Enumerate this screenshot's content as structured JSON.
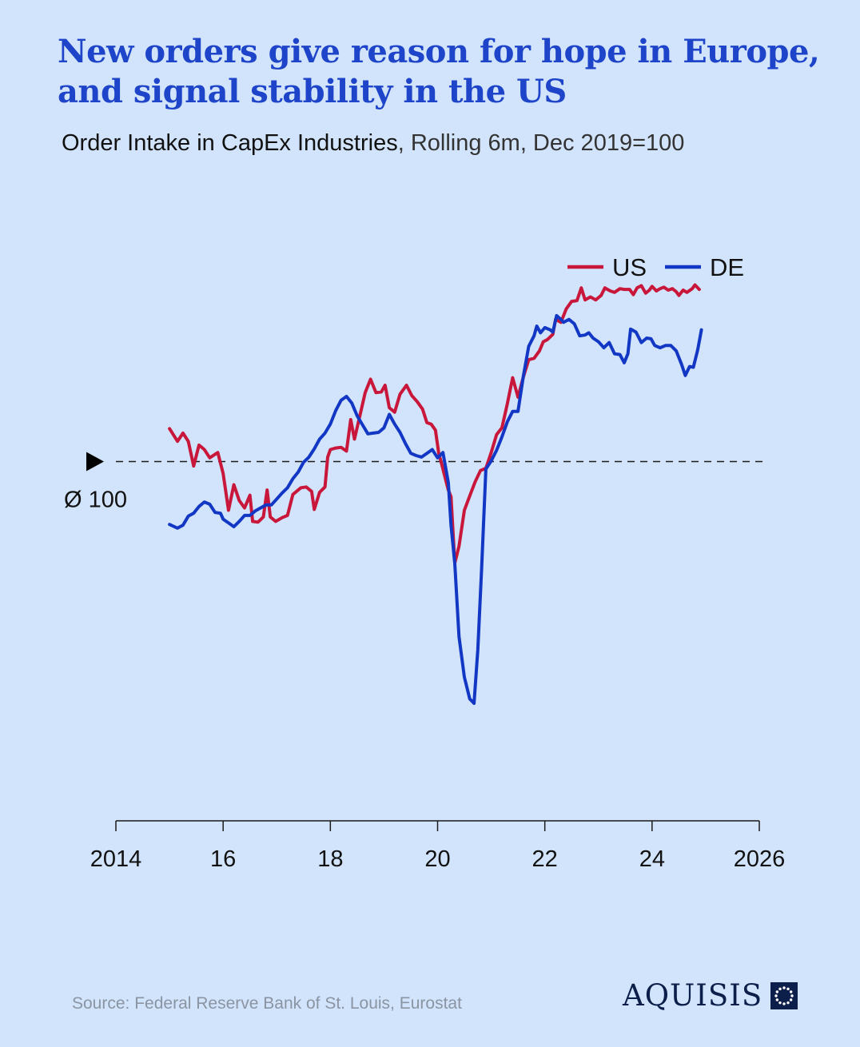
{
  "title_line1": "New orders give reason for hope in Europe,",
  "title_line2": "and signal stability in the US",
  "subtitle_main": "Order Intake in CapEx Industries",
  "subtitle_rest": ", Rolling 6m, Dec 2019=100",
  "source": "Source: Federal Reserve Bank of St. Louis, Eurostat",
  "brand": "AQUISIS",
  "colors": {
    "background": "#d2e4fb",
    "us": "#c8173a",
    "de": "#1237c4",
    "title": "#1e44c9"
  },
  "chart_data": {
    "type": "line",
    "x_ticks": [
      2014,
      2016,
      2018,
      2020,
      2022,
      2024,
      2026
    ],
    "x_tick_labels": [
      "2014",
      "16",
      "18",
      "20",
      "22",
      "24",
      "2026"
    ],
    "xlim": [
      2014,
      2026
    ],
    "ylim": [
      52,
      126
    ],
    "reference_value": 100,
    "reference_label": "Ø 100",
    "grid": false,
    "legend_position": "top-right",
    "series": [
      {
        "name": "US",
        "color": "#c8173a",
        "points": [
          [
            2015.0,
            104.4
          ],
          [
            2015.15,
            102.7
          ],
          [
            2015.25,
            103.8
          ],
          [
            2015.35,
            102.7
          ],
          [
            2015.45,
            99.4
          ],
          [
            2015.55,
            102.2
          ],
          [
            2015.65,
            101.6
          ],
          [
            2015.75,
            100.5
          ],
          [
            2015.9,
            101.2
          ],
          [
            2016.0,
            98.4
          ],
          [
            2016.1,
            93.5
          ],
          [
            2016.2,
            96.9
          ],
          [
            2016.3,
            94.8
          ],
          [
            2016.4,
            93.8
          ],
          [
            2016.5,
            95.5
          ],
          [
            2016.55,
            92.0
          ],
          [
            2016.65,
            91.9
          ],
          [
            2016.75,
            92.6
          ],
          [
            2016.82,
            96.2
          ],
          [
            2016.88,
            92.6
          ],
          [
            2016.98,
            92.0
          ],
          [
            2017.1,
            92.5
          ],
          [
            2017.2,
            92.8
          ],
          [
            2017.3,
            95.6
          ],
          [
            2017.45,
            96.5
          ],
          [
            2017.55,
            96.6
          ],
          [
            2017.65,
            96.0
          ],
          [
            2017.7,
            93.6
          ],
          [
            2017.8,
            95.9
          ],
          [
            2017.9,
            96.6
          ],
          [
            2017.95,
            100.6
          ],
          [
            2018.0,
            101.6
          ],
          [
            2018.1,
            101.8
          ],
          [
            2018.2,
            101.9
          ],
          [
            2018.3,
            101.4
          ],
          [
            2018.38,
            105.6
          ],
          [
            2018.45,
            103.0
          ],
          [
            2018.55,
            106.1
          ],
          [
            2018.65,
            109.2
          ],
          [
            2018.75,
            111.0
          ],
          [
            2018.85,
            109.2
          ],
          [
            2018.95,
            109.3
          ],
          [
            2019.02,
            110.2
          ],
          [
            2019.1,
            107.2
          ],
          [
            2019.2,
            106.6
          ],
          [
            2019.3,
            109.0
          ],
          [
            2019.42,
            110.2
          ],
          [
            2019.52,
            108.8
          ],
          [
            2019.62,
            108.0
          ],
          [
            2019.72,
            107.0
          ],
          [
            2019.8,
            105.2
          ],
          [
            2019.88,
            105.0
          ],
          [
            2019.96,
            104.2
          ],
          [
            2020.02,
            101.2
          ],
          [
            2020.1,
            99.0
          ],
          [
            2020.2,
            96.2
          ],
          [
            2020.25,
            95.3
          ],
          [
            2020.32,
            86.4
          ],
          [
            2020.4,
            88.7
          ],
          [
            2020.5,
            93.5
          ],
          [
            2020.6,
            95.4
          ],
          [
            2020.7,
            97.3
          ],
          [
            2020.8,
            98.8
          ],
          [
            2020.9,
            99.1
          ],
          [
            2021.0,
            101.2
          ],
          [
            2021.1,
            103.6
          ],
          [
            2021.2,
            104.5
          ],
          [
            2021.3,
            107.7
          ],
          [
            2021.4,
            111.2
          ],
          [
            2021.5,
            108.6
          ],
          [
            2021.6,
            111.3
          ],
          [
            2021.7,
            113.6
          ],
          [
            2021.8,
            113.8
          ],
          [
            2021.9,
            114.8
          ],
          [
            2021.97,
            116.0
          ],
          [
            2022.05,
            116.3
          ],
          [
            2022.15,
            117.0
          ],
          [
            2022.2,
            119.0
          ],
          [
            2022.3,
            118.6
          ],
          [
            2022.4,
            120.4
          ],
          [
            2022.5,
            121.4
          ],
          [
            2022.6,
            121.5
          ],
          [
            2022.68,
            123.2
          ],
          [
            2022.75,
            121.6
          ],
          [
            2022.85,
            122.0
          ],
          [
            2022.95,
            121.6
          ],
          [
            2023.05,
            122.2
          ],
          [
            2023.12,
            123.2
          ],
          [
            2023.22,
            122.8
          ],
          [
            2023.3,
            122.6
          ],
          [
            2023.4,
            123.1
          ],
          [
            2023.48,
            123.0
          ],
          [
            2023.58,
            123.0
          ],
          [
            2023.65,
            122.3
          ],
          [
            2023.72,
            123.2
          ],
          [
            2023.8,
            123.5
          ],
          [
            2023.88,
            122.5
          ],
          [
            2023.95,
            122.9
          ],
          [
            2024.0,
            123.4
          ],
          [
            2024.08,
            122.8
          ],
          [
            2024.15,
            123.1
          ],
          [
            2024.22,
            123.3
          ],
          [
            2024.3,
            122.9
          ],
          [
            2024.38,
            123.1
          ],
          [
            2024.45,
            122.7
          ],
          [
            2024.5,
            122.2
          ],
          [
            2024.58,
            122.9
          ],
          [
            2024.65,
            122.6
          ],
          [
            2024.75,
            123.1
          ],
          [
            2024.8,
            123.6
          ],
          [
            2024.88,
            123.0
          ]
        ]
      },
      {
        "name": "DE",
        "color": "#1237c4",
        "points": [
          [
            2015.0,
            91.6
          ],
          [
            2015.15,
            91.1
          ],
          [
            2015.25,
            91.5
          ],
          [
            2015.35,
            92.7
          ],
          [
            2015.45,
            93.1
          ],
          [
            2015.55,
            94.0
          ],
          [
            2015.65,
            94.6
          ],
          [
            2015.75,
            94.3
          ],
          [
            2015.85,
            93.2
          ],
          [
            2015.95,
            93.1
          ],
          [
            2016.0,
            92.3
          ],
          [
            2016.1,
            91.8
          ],
          [
            2016.2,
            91.3
          ],
          [
            2016.3,
            92.0
          ],
          [
            2016.4,
            92.8
          ],
          [
            2016.5,
            92.8
          ],
          [
            2016.6,
            93.4
          ],
          [
            2016.7,
            93.8
          ],
          [
            2016.8,
            94.2
          ],
          [
            2016.9,
            94.2
          ],
          [
            2017.0,
            95.0
          ],
          [
            2017.1,
            95.8
          ],
          [
            2017.2,
            96.5
          ],
          [
            2017.3,
            97.7
          ],
          [
            2017.4,
            98.6
          ],
          [
            2017.5,
            99.9
          ],
          [
            2017.6,
            100.6
          ],
          [
            2017.7,
            101.7
          ],
          [
            2017.8,
            103.0
          ],
          [
            2017.9,
            103.8
          ],
          [
            2018.0,
            105.0
          ],
          [
            2018.1,
            106.8
          ],
          [
            2018.2,
            108.2
          ],
          [
            2018.3,
            108.7
          ],
          [
            2018.4,
            107.8
          ],
          [
            2018.5,
            106.1
          ],
          [
            2018.6,
            104.9
          ],
          [
            2018.7,
            103.7
          ],
          [
            2018.8,
            103.8
          ],
          [
            2018.9,
            103.9
          ],
          [
            2019.0,
            104.5
          ],
          [
            2019.1,
            106.3
          ],
          [
            2019.2,
            105.0
          ],
          [
            2019.3,
            103.9
          ],
          [
            2019.4,
            102.4
          ],
          [
            2019.5,
            101.1
          ],
          [
            2019.6,
            100.8
          ],
          [
            2019.7,
            100.6
          ],
          [
            2019.8,
            101.1
          ],
          [
            2019.9,
            101.6
          ],
          [
            2020.0,
            100.5
          ],
          [
            2020.1,
            101.2
          ],
          [
            2020.2,
            97.2
          ],
          [
            2020.25,
            91.5
          ],
          [
            2020.32,
            86.4
          ],
          [
            2020.4,
            76.6
          ],
          [
            2020.5,
            71.2
          ],
          [
            2020.6,
            68.3
          ],
          [
            2020.68,
            67.7
          ],
          [
            2020.75,
            74.8
          ],
          [
            2020.82,
            85.5
          ],
          [
            2020.9,
            99.0
          ],
          [
            2021.0,
            100.1
          ],
          [
            2021.1,
            101.5
          ],
          [
            2021.2,
            103.3
          ],
          [
            2021.3,
            105.3
          ],
          [
            2021.4,
            106.7
          ],
          [
            2021.5,
            106.7
          ],
          [
            2021.6,
            111.4
          ],
          [
            2021.7,
            115.4
          ],
          [
            2021.8,
            116.8
          ],
          [
            2021.85,
            118.1
          ],
          [
            2021.92,
            117.2
          ],
          [
            2022.0,
            117.9
          ],
          [
            2022.1,
            117.6
          ],
          [
            2022.15,
            117.3
          ],
          [
            2022.22,
            119.5
          ],
          [
            2022.3,
            119.0
          ],
          [
            2022.35,
            118.6
          ],
          [
            2022.45,
            119.0
          ],
          [
            2022.55,
            118.4
          ],
          [
            2022.65,
            116.8
          ],
          [
            2022.75,
            116.9
          ],
          [
            2022.82,
            117.2
          ],
          [
            2022.9,
            116.5
          ],
          [
            2023.0,
            116.0
          ],
          [
            2023.1,
            115.2
          ],
          [
            2023.2,
            115.9
          ],
          [
            2023.3,
            114.4
          ],
          [
            2023.4,
            114.3
          ],
          [
            2023.48,
            113.2
          ],
          [
            2023.55,
            114.4
          ],
          [
            2023.6,
            117.7
          ],
          [
            2023.7,
            117.3
          ],
          [
            2023.8,
            115.9
          ],
          [
            2023.9,
            116.5
          ],
          [
            2023.98,
            116.4
          ],
          [
            2024.05,
            115.5
          ],
          [
            2024.15,
            115.2
          ],
          [
            2024.25,
            115.5
          ],
          [
            2024.35,
            115.5
          ],
          [
            2024.45,
            114.8
          ],
          [
            2024.55,
            113.0
          ],
          [
            2024.62,
            111.5
          ],
          [
            2024.7,
            112.7
          ],
          [
            2024.77,
            112.6
          ],
          [
            2024.85,
            114.9
          ],
          [
            2024.92,
            117.6
          ]
        ]
      }
    ]
  }
}
